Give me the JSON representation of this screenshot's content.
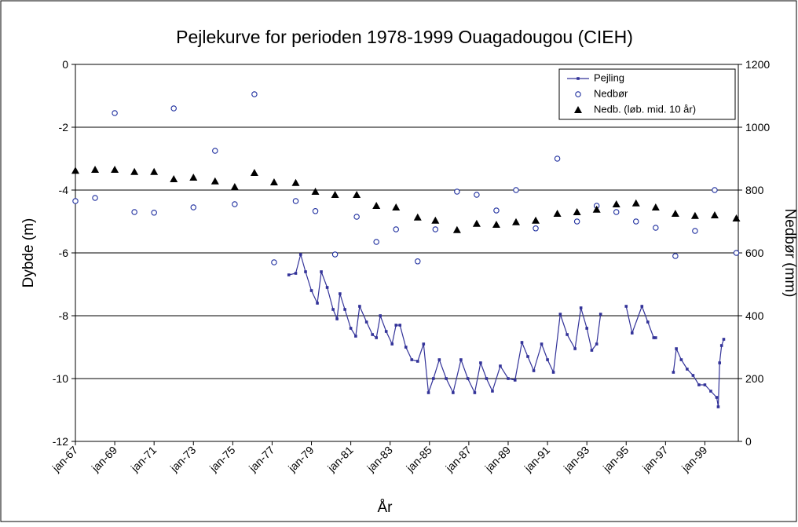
{
  "chart_data": {
    "type": "line",
    "title": "Pejlekurve for perioden 1978-1999 Ouagadougou (CIEH)",
    "x_label": "År",
    "y_label": "Dybde (m)",
    "y2_label": "Nedbør (mm)",
    "xlim": [
      1967,
      2000.7
    ],
    "xticks": [
      {
        "value": 1967,
        "label": "jan-67"
      },
      {
        "value": 1969,
        "label": "jan-69"
      },
      {
        "value": 1971,
        "label": "jan-71"
      },
      {
        "value": 1973,
        "label": "jan-73"
      },
      {
        "value": 1975,
        "label": "jan-75"
      },
      {
        "value": 1977,
        "label": "jan-77"
      },
      {
        "value": 1979,
        "label": "jan-79"
      },
      {
        "value": 1981,
        "label": "jan-81"
      },
      {
        "value": 1983,
        "label": "jan-83"
      },
      {
        "value": 1985,
        "label": "jan-85"
      },
      {
        "value": 1987,
        "label": "jan-87"
      },
      {
        "value": 1989,
        "label": "jan-89"
      },
      {
        "value": 1991,
        "label": "jan-91"
      },
      {
        "value": 1993,
        "label": "jan-93"
      },
      {
        "value": 1995,
        "label": "jan-95"
      },
      {
        "value": 1997,
        "label": "jan-97"
      },
      {
        "value": 1999,
        "label": "jan-99"
      }
    ],
    "ylim": [
      -12,
      0
    ],
    "yticks": [
      0,
      -2,
      -4,
      -6,
      -8,
      -10,
      -12
    ],
    "y2lim": [
      0,
      1200
    ],
    "y2ticks": [
      0,
      200,
      400,
      600,
      800,
      1000,
      1200
    ],
    "grid": true,
    "legend": "upper right",
    "series": [
      {
        "name": "Pejling",
        "type": "line",
        "color": "#333399",
        "x": [
          1977.85,
          1978.2,
          1978.45,
          1978.7,
          1979.0,
          1979.3,
          1979.5,
          1979.8,
          1980.1,
          1980.3,
          1980.45,
          1980.7,
          1981.0,
          1981.25,
          1981.45,
          1981.8,
          1982.1,
          1982.3,
          1982.5,
          1982.8,
          1983.1,
          1983.3,
          1983.5,
          1983.8,
          1984.1,
          1984.4,
          1984.7,
          1984.95,
          1985.2,
          1985.5,
          1985.85,
          1986.2,
          1986.6,
          1986.95,
          1987.3,
          1987.6,
          1987.9,
          1988.2,
          1988.6,
          1989.0,
          1989.35,
          1989.7,
          1990.0,
          1990.3,
          1990.7,
          1991.0,
          1991.3,
          1991.65,
          1992.0,
          1992.4,
          1992.7,
          1993.0,
          1993.25,
          1993.5,
          1993.7,
          null,
          1995.0,
          1995.3,
          1995.8,
          1996.1,
          1996.4,
          1996.5,
          null,
          1997.4,
          1997.55,
          1997.8,
          1998.1,
          1998.4,
          1998.7,
          1999.0,
          1999.3,
          1999.6,
          1999.68,
          1999.75,
          1999.85,
          1999.96
        ],
        "values": [
          -6.7,
          -6.65,
          -6.05,
          -6.6,
          -7.2,
          -7.6,
          -6.6,
          -7.1,
          -7.8,
          -8.1,
          -7.3,
          -7.8,
          -8.4,
          -8.65,
          -7.7,
          -8.2,
          -8.6,
          -8.7,
          -8.0,
          -8.5,
          -8.9,
          -8.3,
          -8.3,
          -9.0,
          -9.4,
          -9.45,
          -8.9,
          -10.45,
          -10.0,
          -9.4,
          -10.0,
          -10.45,
          -9.4,
          -10.0,
          -10.45,
          -9.5,
          -10.0,
          -10.4,
          -9.6,
          -10.0,
          -10.05,
          -8.85,
          -9.3,
          -9.75,
          -8.9,
          -9.4,
          -9.8,
          -7.95,
          -8.6,
          -9.05,
          -7.75,
          -8.4,
          -9.1,
          -8.9,
          -7.95,
          null,
          -7.7,
          -8.55,
          -7.7,
          -8.2,
          -8.7,
          -8.7,
          null,
          -9.8,
          -9.05,
          -9.4,
          -9.7,
          -9.9,
          -10.2,
          -10.2,
          -10.4,
          -10.6,
          -10.9,
          -9.5,
          -8.95,
          -8.75
        ]
      },
      {
        "name": "Nedbør",
        "type": "scatter",
        "marker": "circle",
        "axis": "y2",
        "color": "#1f2f9f",
        "x": [
          1967.0,
          1968.0,
          1969.0,
          1970.0,
          1971.0,
          1972.0,
          1973.0,
          1974.1,
          1975.1,
          1976.1,
          1977.1,
          1978.2,
          1979.2,
          1980.2,
          1981.3,
          1982.3,
          1983.3,
          1984.4,
          1985.3,
          1986.4,
          1987.4,
          1988.4,
          1989.4,
          1990.4,
          1991.5,
          1992.5,
          1993.5,
          1994.5,
          1995.5,
          1996.5,
          1997.5,
          1998.5,
          1999.5,
          2000.6
        ],
        "values": [
          765,
          775,
          1045,
          730,
          728,
          1060,
          745,
          925,
          755,
          1105,
          570,
          765,
          733,
          595,
          715,
          635,
          675,
          573,
          675,
          795,
          785,
          735,
          800,
          678,
          900,
          700,
          750,
          730,
          700,
          680,
          590,
          670,
          800,
          600
        ]
      },
      {
        "name": "Nedb. (løb. mid. 10 år)",
        "type": "scatter",
        "marker": "triangle",
        "axis": "y2",
        "color": "#000000",
        "x": [
          1967.0,
          1968.0,
          1969.0,
          1970.0,
          1971.0,
          1972.0,
          1973.0,
          1974.1,
          1975.1,
          1976.1,
          1977.1,
          1978.2,
          1979.2,
          1980.2,
          1981.3,
          1982.3,
          1983.3,
          1984.4,
          1985.3,
          1986.4,
          1987.4,
          1988.4,
          1989.4,
          1990.4,
          1991.5,
          1992.5,
          1993.5,
          1994.5,
          1995.5,
          1996.5,
          1997.5,
          1998.5,
          1999.5,
          2000.6
        ],
        "values": [
          862,
          865,
          865,
          858,
          858,
          835,
          840,
          828,
          810,
          855,
          825,
          823,
          795,
          785,
          785,
          750,
          745,
          713,
          703,
          673,
          693,
          690,
          698,
          703,
          725,
          730,
          738,
          755,
          758,
          745,
          725,
          718,
          720,
          710
        ]
      }
    ]
  }
}
